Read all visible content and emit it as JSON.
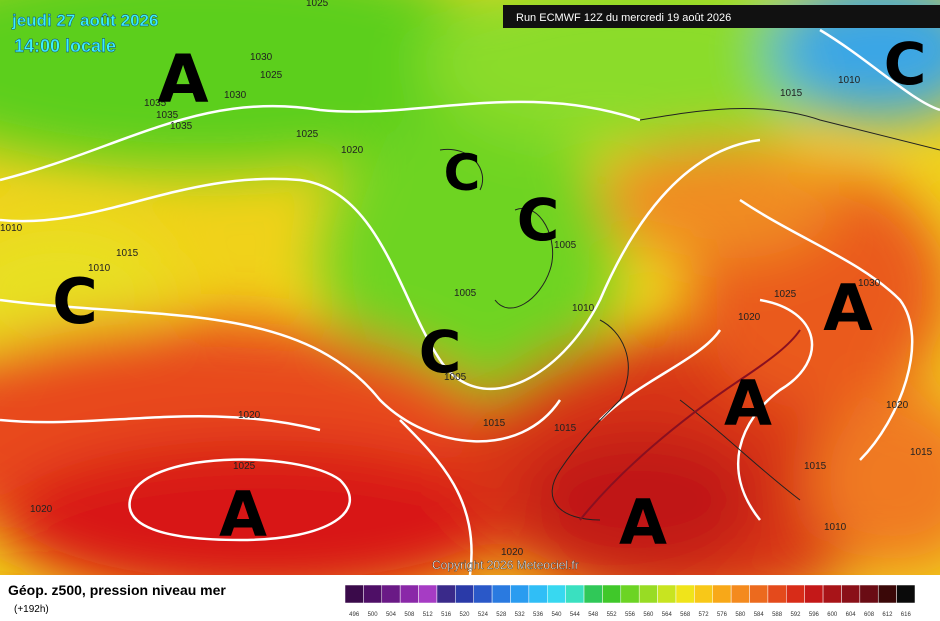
{
  "header": {
    "valid_date": "jeudi 27 août 2026",
    "valid_time": "14:00 locale",
    "run": "Run ECMWF 12Z du mercredi 19 août 2026"
  },
  "footer": {
    "copyright": "Copyright 2026 Meteociel.fr"
  },
  "legend": {
    "title": "Géop. z500, pression niveau mer",
    "subtitle": "(+192h)",
    "scale": [
      {
        "label": 496,
        "color": "#3a0a4a"
      },
      {
        "label": 500,
        "color": "#4e0f66"
      },
      {
        "label": 504,
        "color": "#6a1a86"
      },
      {
        "label": 508,
        "color": "#8a28a8"
      },
      {
        "label": 512,
        "color": "#a63cc4"
      },
      {
        "label": 516,
        "color": "#3a2a8a"
      },
      {
        "label": 520,
        "color": "#2a3aa8"
      },
      {
        "label": 524,
        "color": "#2a58c8"
      },
      {
        "label": 528,
        "color": "#2a7ae0"
      },
      {
        "label": 532,
        "color": "#2a9cf0"
      },
      {
        "label": 536,
        "color": "#30bef6"
      },
      {
        "label": 540,
        "color": "#38d8f0"
      },
      {
        "label": 544,
        "color": "#3ae0c0"
      },
      {
        "label": 548,
        "color": "#30c858"
      },
      {
        "label": 552,
        "color": "#40c82a"
      },
      {
        "label": 556,
        "color": "#6cd424"
      },
      {
        "label": 560,
        "color": "#98dc24"
      },
      {
        "label": 564,
        "color": "#c8e420"
      },
      {
        "label": 568,
        "color": "#f0e41a"
      },
      {
        "label": 572,
        "color": "#f8c818"
      },
      {
        "label": 576,
        "color": "#f8a818"
      },
      {
        "label": 580,
        "color": "#f48a1e"
      },
      {
        "label": 584,
        "color": "#ec6a1e"
      },
      {
        "label": 588,
        "color": "#e44a1c"
      },
      {
        "label": 592,
        "color": "#d82c18"
      },
      {
        "label": 596,
        "color": "#c41818"
      },
      {
        "label": 600,
        "color": "#a81418"
      },
      {
        "label": 604,
        "color": "#8a1018"
      },
      {
        "label": 608,
        "color": "#6a0c14"
      },
      {
        "label": 612,
        "color": "#3a0808"
      },
      {
        "label": 616,
        "color": "#0a0a0a"
      }
    ]
  },
  "isobar_labels": [
    1025,
    1030,
    1025,
    1030,
    1035,
    1035,
    1035,
    1025,
    1020,
    1010,
    1015,
    1010,
    1005,
    1005,
    1010,
    1005,
    1020,
    1015,
    1015,
    1025,
    1020,
    1020,
    1015,
    1010,
    1030,
    1025,
    1020,
    1020,
    1015,
    1015,
    1010
  ],
  "pressure_systems": [
    "A",
    "C",
    "C",
    "C",
    "C",
    "C",
    "A",
    "A",
    "A",
    "A"
  ]
}
